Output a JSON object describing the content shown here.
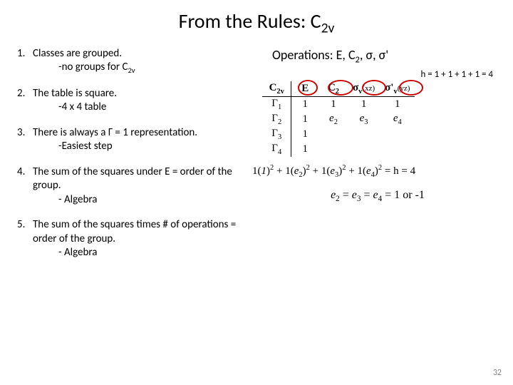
{
  "title_main": "From the Rules: C",
  "title_sub": "2v",
  "rules": [
    {
      "num": "1.",
      "text": "Classes are grouped.",
      "sub": "-no groups for C",
      "sub_sub": "2v"
    },
    {
      "num": "2.",
      "text": "The table is square.",
      "sub": "-4 x 4 table",
      "sub_sub": ""
    },
    {
      "num": "3.",
      "text": "There is always a Γ = 1 representation.",
      "sub": "-Easiest step",
      "sub_sub": ""
    },
    {
      "num": "4.",
      "text": "The sum of the squares under E = order of the group.",
      "sub": "- Algebra",
      "sub_sub": ""
    },
    {
      "num": "5.",
      "text": "The sum of the squares times # of operations = order of the group.",
      "sub": "- Algebra",
      "sub_sub": ""
    }
  ],
  "operations_label": "Operations: E, C",
  "operations_sub1": "2",
  "operations_rest": ", σ, σ'",
  "h_equation": "h = 1 + 1 + 1 + 1 = 4",
  "table": {
    "corner": "C",
    "corner_sub": "2v",
    "headers": [
      "E",
      "C",
      "σ",
      "σ'"
    ],
    "header_sub": [
      "",
      "2",
      "v",
      "v"
    ],
    "header_extra": [
      "",
      "",
      "(xz)",
      "(yz)"
    ],
    "row_labels": [
      "Γ",
      "Γ",
      "Γ",
      "Γ"
    ],
    "row_label_sub": [
      "1",
      "2",
      "3",
      "4"
    ],
    "rows": [
      [
        "1",
        "1",
        "1",
        "1"
      ],
      [
        "1",
        "e",
        "e",
        "e"
      ],
      [
        "1",
        "",
        "",
        ""
      ],
      [
        "1",
        "",
        "",
        ""
      ]
    ],
    "row2_sub": [
      "",
      "2",
      "3",
      "4"
    ]
  },
  "equation1_parts": {
    "p1": "1(",
    "p2": "1",
    "p3": ")",
    "p4": "2",
    "p5": " + 1(",
    "e2": "e",
    "e2s": "2",
    "p6": ")",
    "p7": "2",
    "p8": " + 1(",
    "e3": "e",
    "e3s": "3",
    "p9": ")",
    "p10": "2",
    "p11": " + 1(",
    "e4": "e",
    "e4s": "4",
    "p12": ")",
    "p13": "2",
    "p14": " = h = 4"
  },
  "equation2_parts": {
    "e2": "e",
    "e2s": "2",
    "eq1": " = ",
    "e3": "e",
    "e3s": "3",
    "eq2": " = ",
    "e4": "e",
    "e4s": "4",
    "eq3": " =  1 or -1"
  },
  "page_number": "32",
  "colors": {
    "circle": "#cc0000",
    "text": "#000000",
    "pagenum": "#888888",
    "bg": "#ffffff"
  }
}
